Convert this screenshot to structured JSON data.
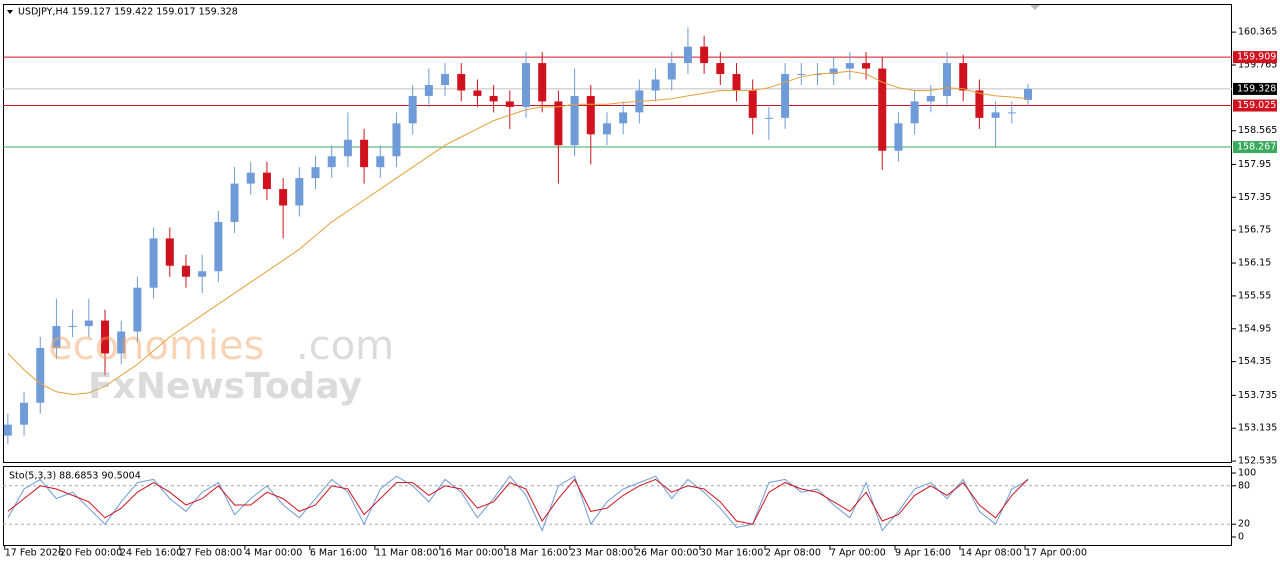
{
  "chart_data": [
    {
      "type": "candlestick",
      "title": "USDJPY,H4  159.127 159.422 159.017 159.328",
      "xlim": [
        -0.3,
        75.6
      ],
      "ylim": [
        152.5,
        160.86
      ],
      "yticks": [
        160.365,
        159.765,
        158.565,
        157.95,
        157.35,
        156.75,
        156.15,
        155.55,
        154.95,
        154.35,
        153.735,
        153.135,
        152.535
      ],
      "up_color": "#6f9bd8",
      "down_color": "#d0121e",
      "open": [
        153.0,
        153.2,
        153.6,
        154.6,
        155.0,
        155.0,
        155.1,
        154.5,
        154.9,
        155.7,
        156.6,
        156.1,
        155.9,
        156.0,
        156.9,
        157.6,
        157.8,
        157.5,
        157.2,
        157.7,
        157.9,
        158.1,
        158.4,
        157.9,
        158.1,
        158.7,
        159.2,
        159.4,
        159.6,
        159.3,
        159.2,
        159.1,
        159.0,
        159.8,
        159.1,
        158.3,
        159.2,
        158.5,
        158.7,
        158.9,
        159.3,
        159.5,
        159.8,
        160.1,
        159.8,
        159.6,
        159.3,
        158.8,
        158.8,
        159.6,
        159.6,
        159.6,
        159.7,
        159.8,
        159.7,
        158.2,
        158.7,
        159.1,
        159.2,
        159.8,
        159.3,
        158.8,
        158.9,
        159.127
      ],
      "high": [
        153.4,
        153.8,
        154.8,
        155.5,
        155.3,
        155.5,
        155.3,
        155.1,
        155.9,
        156.8,
        156.8,
        156.3,
        156.3,
        157.1,
        157.9,
        158.0,
        158.0,
        157.7,
        157.9,
        158.1,
        158.3,
        158.9,
        158.6,
        158.3,
        158.9,
        159.4,
        159.7,
        159.8,
        159.8,
        159.5,
        159.4,
        159.3,
        160.0,
        160.0,
        159.3,
        159.7,
        159.4,
        158.9,
        159.1,
        159.5,
        159.7,
        160.0,
        160.45,
        160.3,
        160.0,
        159.8,
        159.5,
        159.0,
        159.8,
        159.8,
        159.8,
        159.9,
        160.0,
        160.0,
        159.9,
        158.9,
        159.3,
        159.4,
        160.0,
        159.95,
        159.5,
        159.1,
        159.1,
        159.422
      ],
      "low": [
        152.85,
        153.0,
        153.4,
        154.4,
        154.8,
        154.8,
        154.1,
        154.3,
        154.7,
        155.5,
        155.9,
        155.7,
        155.6,
        155.8,
        156.7,
        157.4,
        157.3,
        156.6,
        157.0,
        157.5,
        157.7,
        157.9,
        157.6,
        157.7,
        157.9,
        158.5,
        159.0,
        159.2,
        159.1,
        159.0,
        158.9,
        158.6,
        158.8,
        158.9,
        157.6,
        158.1,
        157.95,
        158.3,
        158.5,
        158.7,
        159.1,
        159.3,
        159.6,
        159.6,
        159.4,
        159.1,
        158.5,
        158.4,
        158.6,
        159.4,
        159.4,
        159.4,
        159.5,
        159.5,
        157.85,
        158.0,
        158.5,
        158.9,
        159.0,
        159.1,
        158.6,
        158.27,
        158.7,
        159.017
      ],
      "close": [
        153.2,
        153.6,
        154.6,
        155.0,
        155.0,
        155.1,
        154.5,
        154.9,
        155.7,
        156.6,
        156.1,
        155.9,
        156.0,
        156.9,
        157.6,
        157.8,
        157.5,
        157.2,
        157.7,
        157.9,
        158.1,
        158.4,
        157.9,
        158.1,
        158.7,
        159.2,
        159.4,
        159.6,
        159.3,
        159.2,
        159.1,
        159.0,
        159.8,
        159.1,
        158.3,
        159.2,
        158.5,
        158.7,
        158.9,
        159.3,
        159.5,
        159.8,
        160.1,
        159.8,
        159.6,
        159.3,
        158.8,
        158.8,
        159.6,
        159.6,
        159.6,
        159.7,
        159.8,
        159.7,
        158.2,
        158.7,
        159.1,
        159.2,
        159.8,
        159.3,
        158.8,
        158.9,
        158.9,
        159.328
      ],
      "ma": {
        "color": "#e5a13a",
        "values": [
          154.5,
          154.2,
          153.95,
          153.8,
          153.75,
          153.78,
          153.9,
          154.1,
          154.3,
          154.55,
          154.8,
          155.0,
          155.2,
          155.4,
          155.6,
          155.8,
          156.0,
          156.2,
          156.4,
          156.65,
          156.9,
          157.1,
          157.3,
          157.5,
          157.7,
          157.9,
          158.1,
          158.3,
          158.45,
          158.6,
          158.75,
          158.85,
          158.95,
          159.0,
          159.0,
          159.05,
          159.05,
          159.05,
          159.08,
          159.1,
          159.12,
          159.15,
          159.2,
          159.25,
          159.3,
          159.3,
          159.3,
          159.35,
          159.45,
          159.55,
          159.6,
          159.62,
          159.65,
          159.6,
          159.45,
          159.35,
          159.3,
          159.3,
          159.35,
          159.33,
          159.25,
          159.2,
          159.18,
          159.15
        ]
      },
      "levels": [
        {
          "value": 159.909,
          "color": "#d0121e"
        },
        {
          "value": 159.025,
          "color": "#d0121e"
        },
        {
          "value": 158.267,
          "color": "#3aaa5c"
        }
      ],
      "last_price": {
        "value": 159.328,
        "color": "#000000"
      },
      "watermark": {
        "brand": "economies",
        "suffix": ".com",
        "brand2": "FxNewsToday"
      }
    },
    {
      "type": "stochastic",
      "title": "Sto(5,3,3) 88.6853 90.5004",
      "xlim": [
        -0.3,
        75.6
      ],
      "ylim": [
        -12.5,
        109.4
      ],
      "yticks": [
        100,
        80,
        20,
        0
      ],
      "levels": [
        80,
        20
      ],
      "xticks": [
        {
          "value": -0.19,
          "label": "17 Feb 2026"
        },
        {
          "value": 3.21,
          "label": "20 Feb 00:00"
        },
        {
          "value": 6.92,
          "label": "24 Feb 16:00"
        },
        {
          "value": 10.62,
          "label": "27 Feb 08:00"
        },
        {
          "value": 14.64,
          "label": "4 Mar 00:00"
        },
        {
          "value": 18.65,
          "label": "6 Mar 16:00"
        },
        {
          "value": 22.67,
          "label": "11 Mar 08:00"
        },
        {
          "value": 26.68,
          "label": "16 Mar 00:00"
        },
        {
          "value": 30.69,
          "label": "18 Mar 16:00"
        },
        {
          "value": 34.71,
          "label": "23 Mar 08:00"
        },
        {
          "value": 38.73,
          "label": "26 Mar 00:00"
        },
        {
          "value": 42.74,
          "label": "30 Mar 16:00"
        },
        {
          "value": 46.76,
          "label": "2 Apr 08:00"
        },
        {
          "value": 50.77,
          "label": "7 Apr 00:00"
        },
        {
          "value": 54.79,
          "label": "9 Apr 16:00"
        },
        {
          "value": 58.8,
          "label": "14 Apr 08:00"
        },
        {
          "value": 62.82,
          "label": "17 Apr 00:00"
        }
      ],
      "series": [
        {
          "color": "#6f9bd8",
          "values": [
            30,
            75,
            90,
            60,
            70,
            45,
            20,
            55,
            85,
            90,
            60,
            40,
            70,
            85,
            35,
            60,
            80,
            50,
            30,
            60,
            90,
            70,
            20,
            75,
            95,
            80,
            55,
            90,
            70,
            30,
            60,
            95,
            65,
            10,
            80,
            95,
            20,
            55,
            75,
            85,
            95,
            60,
            90,
            70,
            45,
            15,
            20,
            85,
            90,
            70,
            75,
            50,
            30,
            85,
            10,
            40,
            75,
            85,
            60,
            90,
            40,
            20,
            75,
            88.6853
          ]
        },
        {
          "color": "#d0121e",
          "values": [
            40,
            60,
            80,
            75,
            65,
            55,
            30,
            45,
            70,
            85,
            70,
            50,
            60,
            80,
            50,
            50,
            70,
            60,
            40,
            50,
            80,
            75,
            35,
            60,
            85,
            85,
            65,
            80,
            75,
            45,
            55,
            85,
            75,
            25,
            60,
            90,
            40,
            45,
            65,
            80,
            90,
            70,
            80,
            75,
            55,
            25,
            20,
            70,
            85,
            75,
            70,
            55,
            40,
            70,
            25,
            35,
            65,
            80,
            65,
            85,
            50,
            30,
            65,
            90.5004
          ]
        }
      ]
    }
  ]
}
